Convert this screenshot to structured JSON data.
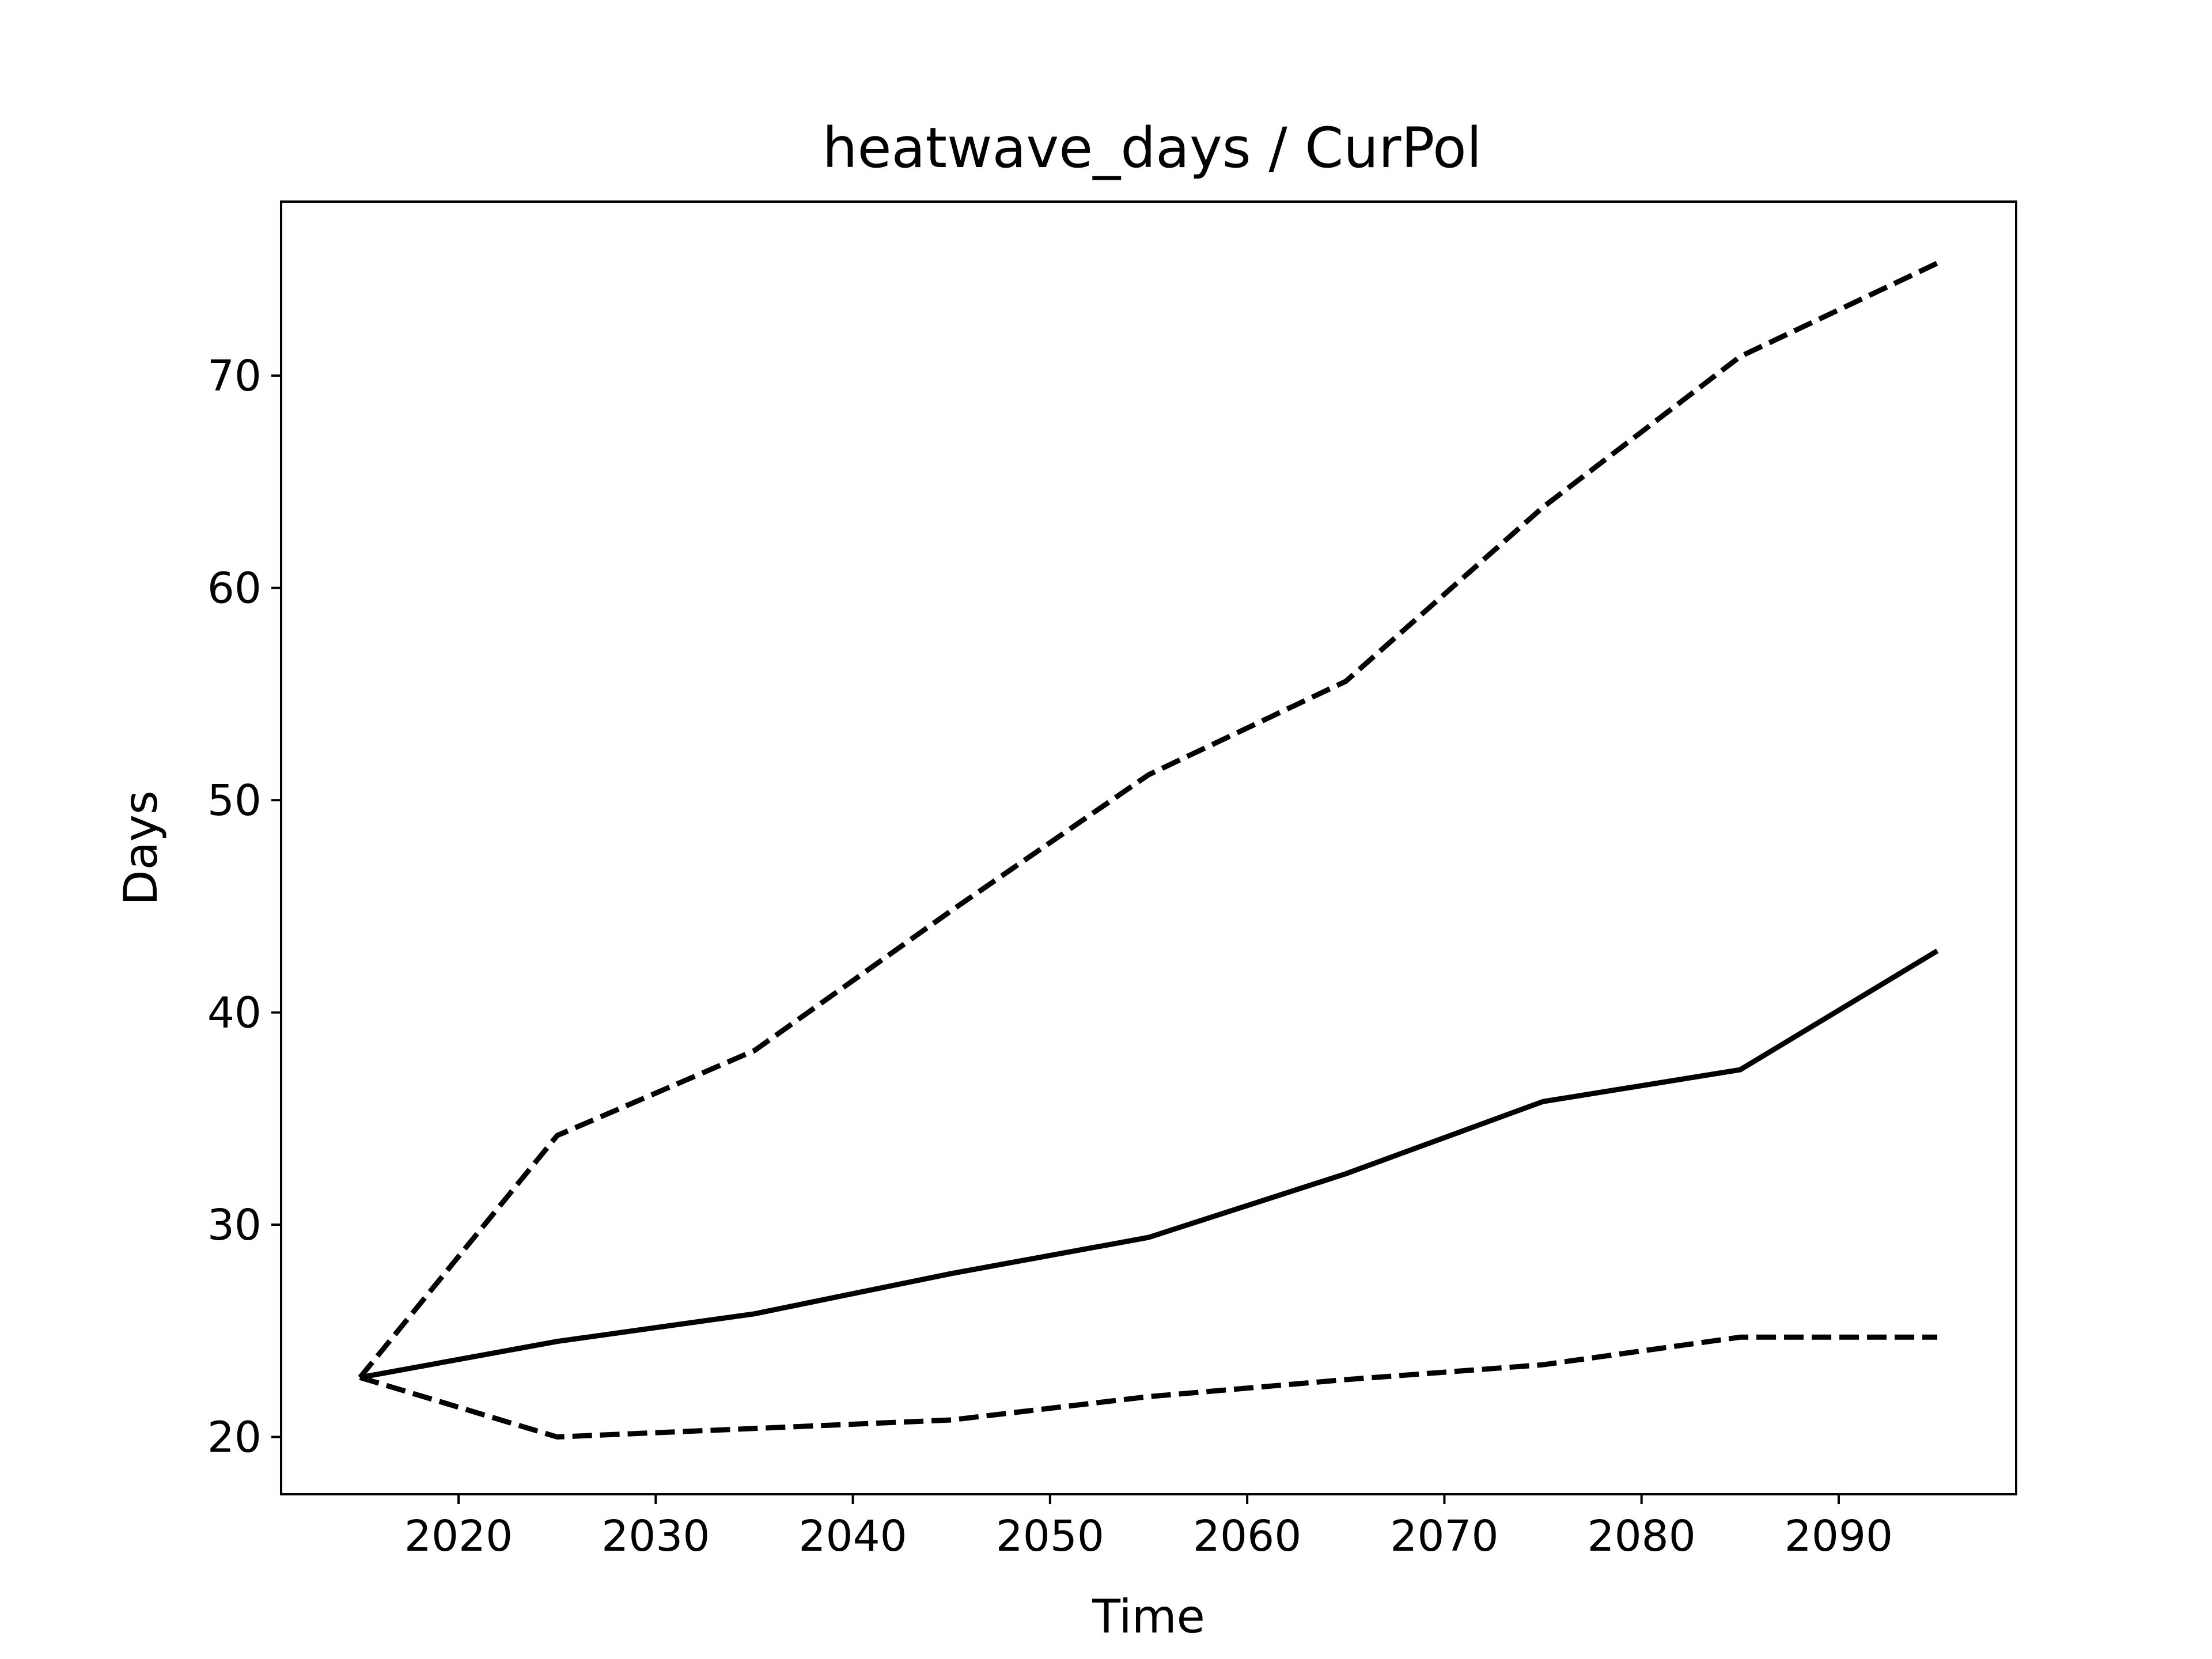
{
  "chart_data": {
    "type": "line",
    "title": "heatwave_days / CurPol",
    "xlabel": "Time",
    "ylabel": "Days",
    "x": [
      2015,
      2025,
      2035,
      2045,
      2055,
      2065,
      2075,
      2085,
      2095
    ],
    "xlim": [
      2011,
      2099
    ],
    "ylim": [
      17.3,
      78.2
    ],
    "xticks": [
      2020,
      2030,
      2040,
      2050,
      2060,
      2070,
      2080,
      2090
    ],
    "yticks": [
      20,
      30,
      40,
      50,
      60,
      70
    ],
    "grid": false,
    "series": [
      {
        "style": "dashed",
        "color": "#000000",
        "values": [
          22.8,
          34.2,
          38.2,
          44.8,
          51.2,
          55.6,
          63.8,
          70.9,
          75.3
        ]
      },
      {
        "style": "solid",
        "color": "#000000",
        "values": [
          22.8,
          24.5,
          25.8,
          27.7,
          29.4,
          32.4,
          35.8,
          37.3,
          42.9
        ]
      },
      {
        "style": "dashed",
        "color": "#000000",
        "values": [
          22.8,
          20.0,
          20.4,
          20.8,
          21.9,
          22.7,
          23.4,
          24.7,
          24.7
        ]
      }
    ]
  }
}
